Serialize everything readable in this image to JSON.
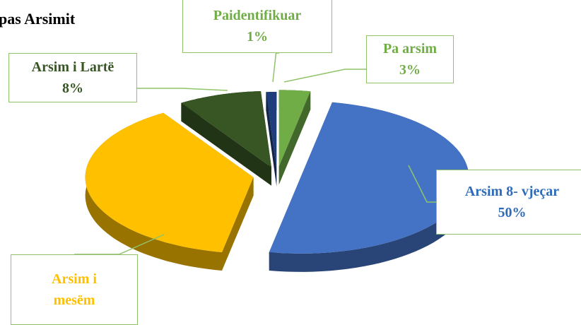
{
  "chart_data": {
    "type": "pie3d",
    "title": "pas Arsimit",
    "categories": [
      "Pa arsim",
      "Arsim 8- vjeçar",
      "Arsim i mesëm",
      "Arsim i Lartë",
      "Paidentifikuar"
    ],
    "values": [
      3,
      50,
      38,
      8,
      1
    ],
    "value_labels": [
      "3%",
      "50%",
      null,
      "8%",
      "1%"
    ],
    "colors": [
      "#70ad47",
      "#4472c4",
      "#ffc000",
      "#375623",
      "#1f3d7a"
    ],
    "label_colors": [
      "#70ad47",
      "#2e6bb8",
      "#ffc000",
      "#375623",
      "#70ad47"
    ]
  }
}
